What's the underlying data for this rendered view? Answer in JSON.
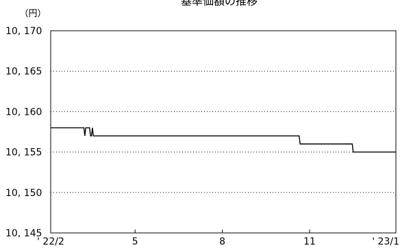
{
  "chart_data": {
    "type": "line",
    "title": "基準価額の推移",
    "unit_label": "（円）",
    "xlabel": "",
    "ylabel": "",
    "ylim": [
      10145,
      10170
    ],
    "y_ticks": [
      {
        "value": 10170,
        "label": "10, 170"
      },
      {
        "value": 10165,
        "label": "10, 165"
      },
      {
        "value": 10160,
        "label": "10, 160"
      },
      {
        "value": 10155,
        "label": "10, 155"
      },
      {
        "value": 10150,
        "label": "10, 150"
      },
      {
        "value": 10145,
        "label": "10, 145"
      }
    ],
    "x_range": [
      "2022-02-01",
      "2023-01-31"
    ],
    "x_ticks": [
      {
        "date": "2022-02-01",
        "label": "' 22/2"
      },
      {
        "date": "2022-05-01",
        "label": "5"
      },
      {
        "date": "2022-08-01",
        "label": "8"
      },
      {
        "date": "2022-11-01",
        "label": "11"
      },
      {
        "date": "2023-01-31",
        "label": "' 23/1"
      }
    ],
    "grid": "horizontal-dotted",
    "legend": "none",
    "line_color": "#000000",
    "series": [
      {
        "points": [
          {
            "date": "2022-02-01",
            "value": 10158
          },
          {
            "date": "2022-03-08",
            "value": 10158
          },
          {
            "date": "2022-03-09",
            "value": 10157
          },
          {
            "date": "2022-03-10",
            "value": 10158
          },
          {
            "date": "2022-03-14",
            "value": 10158
          },
          {
            "date": "2022-03-15",
            "value": 10157
          },
          {
            "date": "2022-03-16",
            "value": 10157
          },
          {
            "date": "2022-03-17",
            "value": 10158
          },
          {
            "date": "2022-03-18",
            "value": 10157
          },
          {
            "date": "2022-10-21",
            "value": 10157
          },
          {
            "date": "2022-10-22",
            "value": 10156
          },
          {
            "date": "2022-12-16",
            "value": 10156
          },
          {
            "date": "2022-12-17",
            "value": 10155
          },
          {
            "date": "2023-01-31",
            "value": 10155
          }
        ]
      }
    ]
  }
}
